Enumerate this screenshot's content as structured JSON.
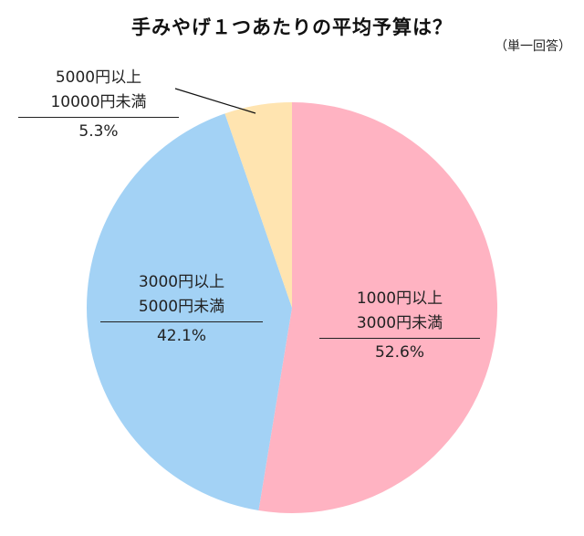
{
  "title": "手みやげ１つあたりの平均予算は？",
  "subtitle": "（単一回答）",
  "chart_data": {
    "type": "pie",
    "title": "手みやげ１つあたりの平均予算は？",
    "subtitle": "（単一回答）",
    "categories": [
      "1000円以上3000円未満",
      "3000円以上5000円未満",
      "5000円以上10000円未満"
    ],
    "values": [
      52.6,
      42.1,
      5.3
    ],
    "unit": "%",
    "colors": [
      "#FFB3C2",
      "#A3D2F5",
      "#FFE4B0"
    ],
    "start_angle": "12 o'clock",
    "direction": "clockwise",
    "legend": "none (inline labels)"
  },
  "labels": [
    {
      "line1": "1000円以上",
      "line2": "3000円未満",
      "pct": "52.6%"
    },
    {
      "line1": "3000円以上",
      "line2": "5000円未満",
      "pct": "42.1%"
    },
    {
      "line1": "5000円以上",
      "line2": "10000円未満",
      "pct": "5.3%"
    }
  ]
}
